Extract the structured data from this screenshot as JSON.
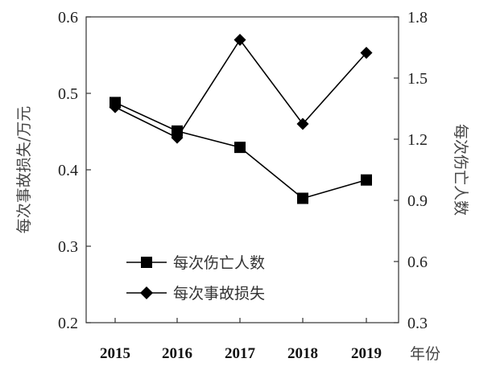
{
  "chart_data": {
    "type": "line",
    "categories": [
      "2015",
      "2016",
      "2017",
      "2018",
      "2019"
    ],
    "xlabel": "年份",
    "ylabel_left": "每次事故损失/万元",
    "ylabel_right": "每次伤亡人数",
    "ylim_left": [
      0.2,
      0.6
    ],
    "yticks_left": [
      "0.2",
      "0.3",
      "0.4",
      "0.5",
      "0.6"
    ],
    "ylim_right": [
      0.3,
      1.8
    ],
    "yticks_right": [
      "0.3",
      "0.6",
      "0.9",
      "1.2",
      "1.5",
      "1.8"
    ],
    "grid": false,
    "legend_position": "lower-left",
    "series": [
      {
        "name": "每次伤亡人数",
        "axis": "right",
        "marker": "square",
        "values": [
          1.38,
          1.24,
          1.16,
          0.91,
          1.0
        ]
      },
      {
        "name": "每次事故损失",
        "axis": "left",
        "marker": "diamond",
        "values": [
          0.482,
          0.442,
          0.57,
          0.46,
          0.553
        ]
      }
    ]
  },
  "colors": {
    "line": "#000000",
    "axis": "#333333",
    "text": "#222222"
  }
}
